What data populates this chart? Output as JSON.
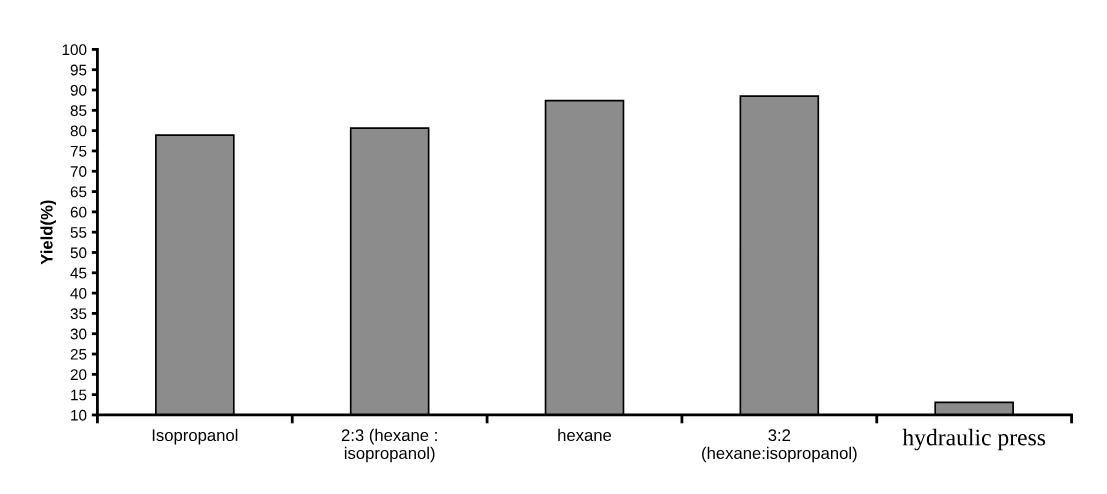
{
  "chart_data": {
    "type": "bar",
    "ylabel": "Yield(%)",
    "categories": [
      "Isopropanol",
      "2:3 (hexane :\nisopropanol)",
      "hexane",
      "3:2\n(hexane:isopropanol)",
      "hydraulic press"
    ],
    "values": [
      78.9,
      80.6,
      87.4,
      88.5,
      13.1
    ],
    "color": "#8c8c8c",
    "ylim": [
      10,
      100
    ],
    "yticks": [
      10,
      15,
      20,
      25,
      30,
      35,
      40,
      45,
      50,
      55,
      60,
      65,
      70,
      75,
      80,
      85,
      90,
      95,
      100
    ],
    "grid": false
  }
}
